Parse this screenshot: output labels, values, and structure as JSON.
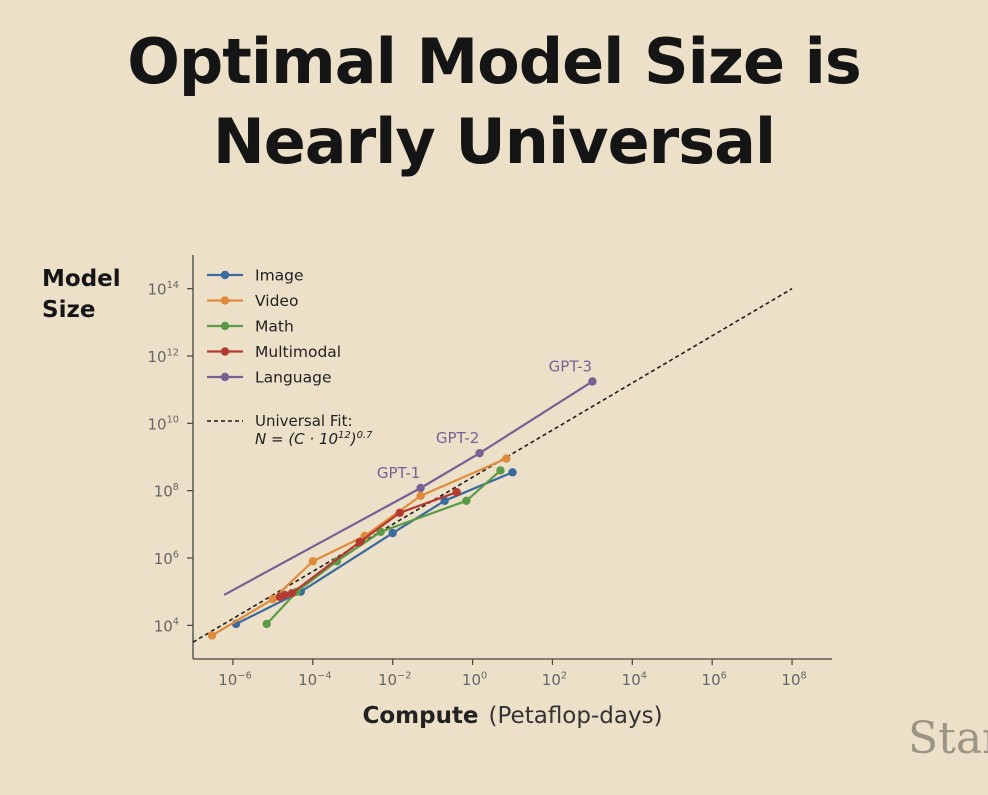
{
  "slide": {
    "title_line1": "Optimal Model Size is",
    "title_line2": "Nearly Universal",
    "watermark": "Star"
  },
  "chart_data": {
    "type": "line",
    "title": "Optimal Model Size is Nearly Universal",
    "ylabel": [
      "Model",
      "Size"
    ],
    "xlabel_bold": "Compute",
    "xlabel_unit": "(Petaflop-days)",
    "x_scale": "log",
    "y_scale": "log",
    "xlim": [
      1e-07,
      1000000000.0
    ],
    "ylim": [
      1000.0,
      1000000000000000.0
    ],
    "x_ticks": [
      {
        "value": 1e-06,
        "label": "10",
        "exp": "−6"
      },
      {
        "value": 0.0001,
        "label": "10",
        "exp": "−4"
      },
      {
        "value": 0.01,
        "label": "10",
        "exp": "−2"
      },
      {
        "value": 1.0,
        "label": "10",
        "exp": "0"
      },
      {
        "value": 100.0,
        "label": "10",
        "exp": "2"
      },
      {
        "value": 10000.0,
        "label": "10",
        "exp": "4"
      },
      {
        "value": 1000000.0,
        "label": "10",
        "exp": "6"
      },
      {
        "value": 100000000.0,
        "label": "10",
        "exp": "8"
      }
    ],
    "y_ticks": [
      {
        "value": 10000.0,
        "label": "10",
        "exp": "4"
      },
      {
        "value": 1000000.0,
        "label": "10",
        "exp": "6"
      },
      {
        "value": 100000000.0,
        "label": "10",
        "exp": "8"
      },
      {
        "value": 10000000000.0,
        "label": "10",
        "exp": "10"
      },
      {
        "value": 1000000000000.0,
        "label": "10",
        "exp": "12"
      },
      {
        "value": 100000000000000.0,
        "label": "10",
        "exp": "14"
      }
    ],
    "grid": false,
    "legend_position": "top-left",
    "series": [
      {
        "name": "Image",
        "color": "#3b6a9e",
        "points": [
          [
            1.2e-06,
            11000.0
          ],
          [
            5e-05,
            100000.0
          ],
          [
            0.01,
            5500000.0
          ],
          [
            0.2,
            50000000.0
          ],
          [
            10,
            350000000.0
          ]
        ]
      },
      {
        "name": "Video",
        "color": "#e08a3c",
        "points": [
          [
            3e-07,
            5000.0
          ],
          [
            1e-05,
            60000.0
          ],
          [
            0.0001,
            800000.0
          ],
          [
            0.002,
            4500000.0
          ],
          [
            0.05,
            70000000.0
          ],
          [
            7,
            900000000.0
          ]
        ]
      },
      {
        "name": "Math",
        "color": "#5c9a48",
        "points": [
          [
            7e-06,
            11000.0
          ],
          [
            4e-05,
            100000.0
          ],
          [
            0.0004,
            800000.0
          ],
          [
            0.005,
            6000000.0
          ],
          [
            0.7,
            50000000.0
          ],
          [
            5,
            400000000.0
          ]
        ]
      },
      {
        "name": "Multimodal",
        "color": "#b53a32",
        "points": [
          [
            1.5e-05,
            70000.0
          ],
          [
            2e-05,
            80000.0
          ],
          [
            3e-05,
            90000.0
          ],
          [
            0.0015,
            3000000.0
          ],
          [
            0.015,
            22000000.0
          ],
          [
            0.4,
            90000000.0
          ]
        ]
      },
      {
        "name": "Language",
        "color": "#7a5f94",
        "points": [
          [
            0.05,
            120000000.0
          ],
          [
            1.5,
            1300000000.0
          ],
          [
            1000,
            175000000000.0
          ]
        ],
        "line_start": [
          6e-07,
          80000.0
        ]
      }
    ],
    "fit": {
      "label_line1": "Universal Fit:",
      "label_line2_text": "N = (C · 10",
      "label_exp_inner": "12",
      "label_close": ")",
      "label_exp_outer": "0.7",
      "exponent": 0.7,
      "coefficient": 1000000000000.0,
      "x_range": [
        1e-07,
        100000000.0
      ]
    },
    "annotations": [
      {
        "text": "GPT-1",
        "x": 0.05,
        "y": 120000000.0
      },
      {
        "text": "GPT-2",
        "x": 1.5,
        "y": 1300000000.0
      },
      {
        "text": "GPT-3",
        "x": 1000,
        "y": 175000000000.0
      }
    ]
  }
}
